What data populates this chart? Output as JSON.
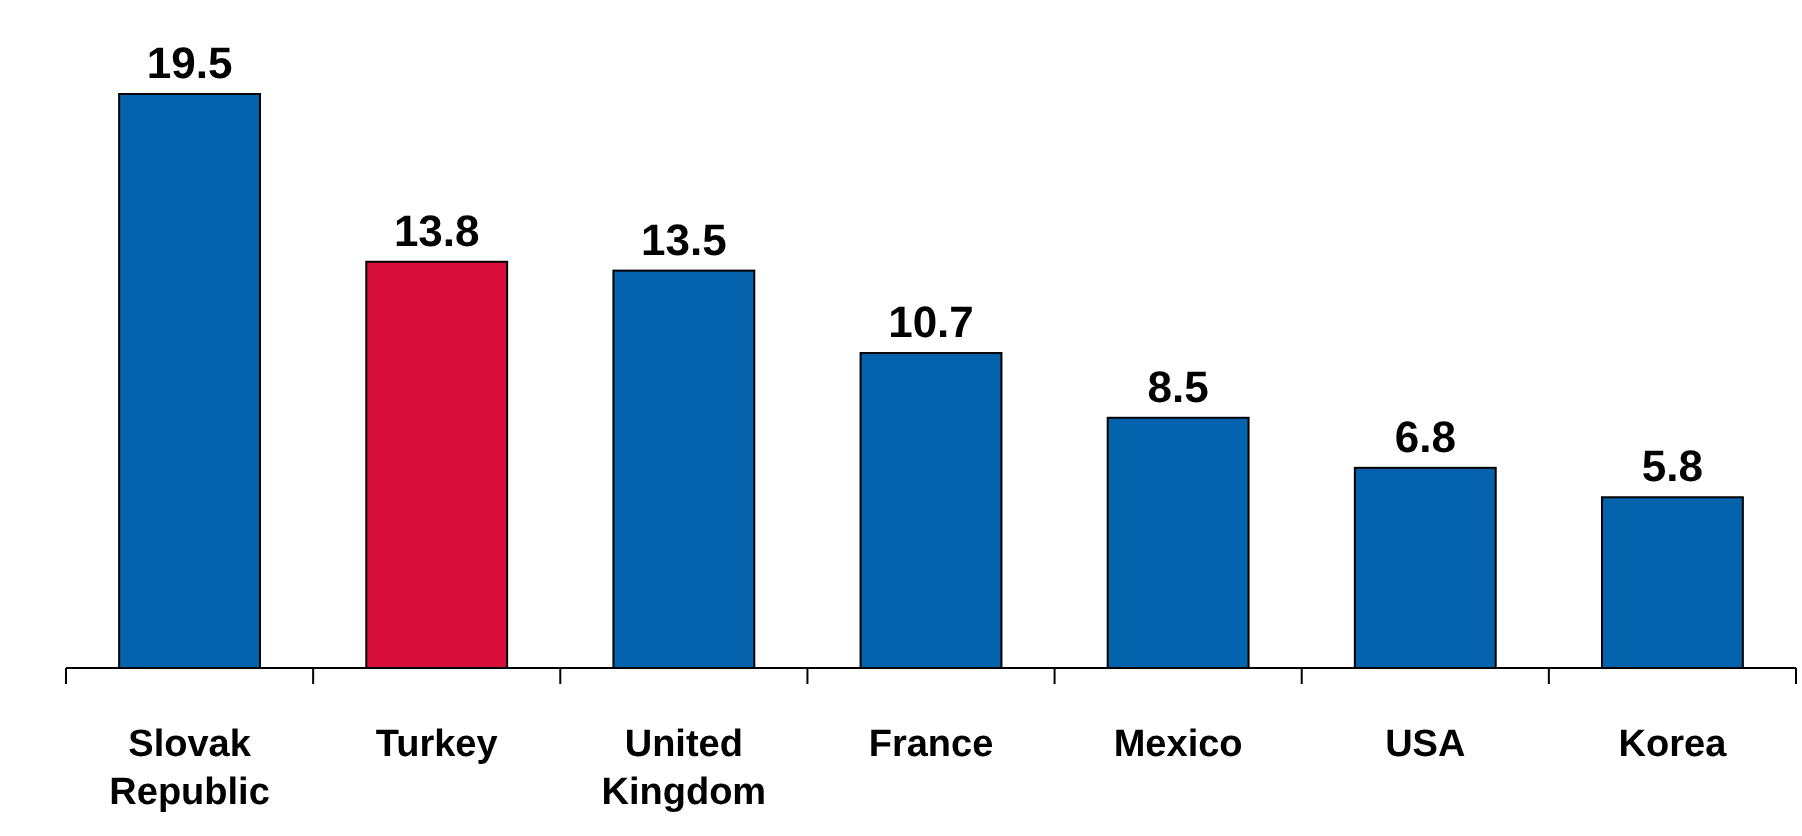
{
  "chart_data": {
    "type": "bar",
    "categories": [
      "Slovak Republic",
      "Turkey",
      "United Kingdom",
      "France",
      "Mexico",
      "USA",
      "Korea"
    ],
    "values": [
      19.5,
      13.8,
      13.5,
      10.7,
      8.5,
      6.8,
      5.8
    ],
    "colors": [
      "#0563ad",
      "#d90f3b",
      "#0563ad",
      "#0563ad",
      "#0563ad",
      "#0563ad",
      "#0563ad"
    ],
    "data_labels": true
  }
}
